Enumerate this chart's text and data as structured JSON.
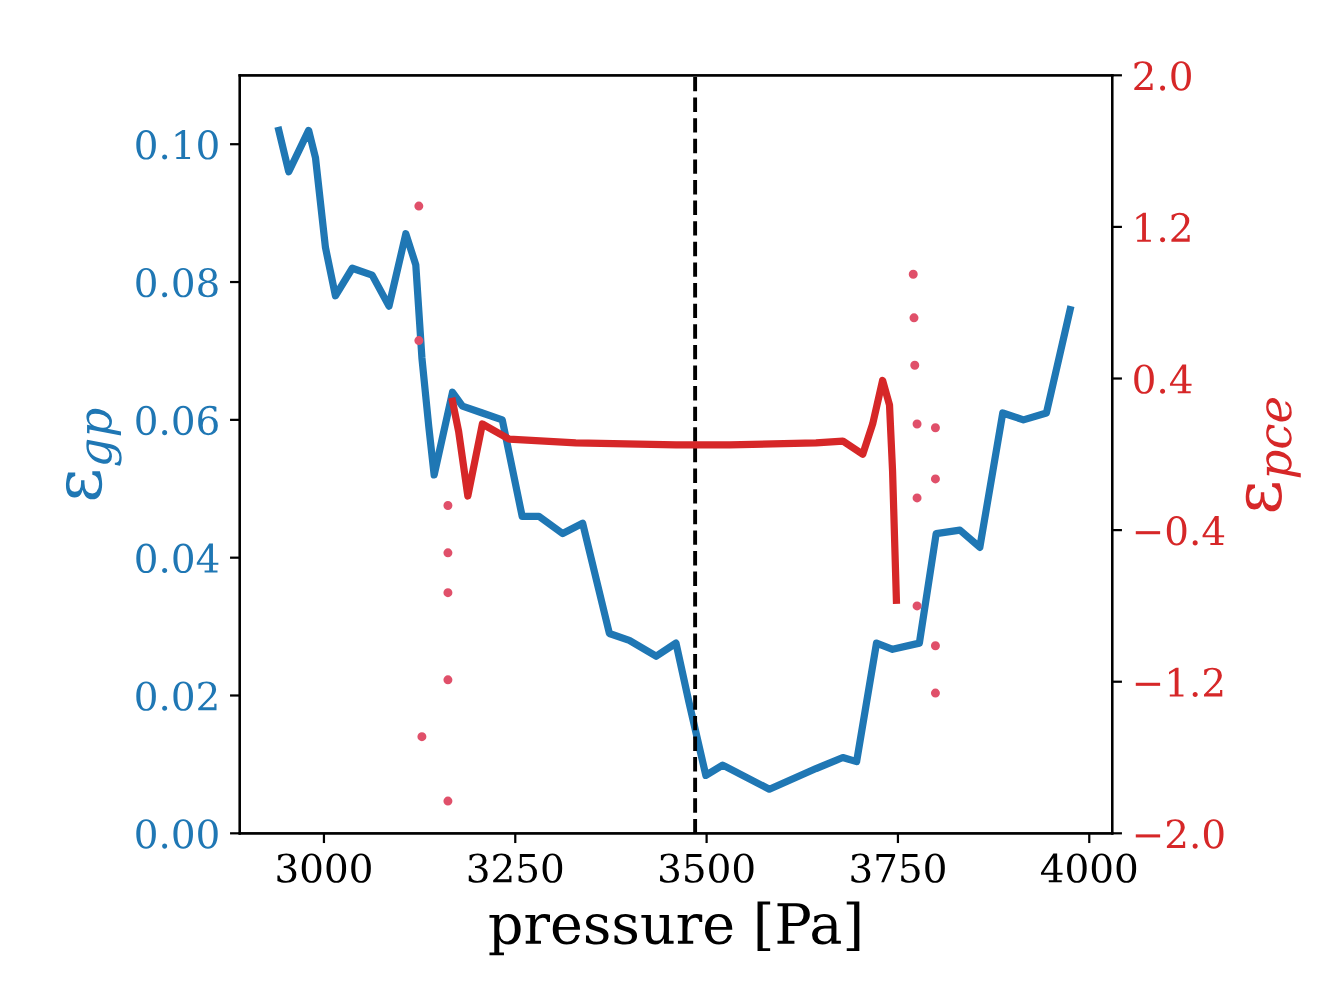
{
  "chart_data": {
    "type": "line",
    "xlabel": "pressure [Pa]",
    "ylabel": "ε$_{gp}$",
    "y2label": "ε$_{pce}$",
    "xlim": [
      2890,
      4030
    ],
    "xticks": [
      3000,
      3250,
      3500,
      3750,
      4000
    ],
    "ylim": [
      0,
      0.11
    ],
    "yticks": [
      {
        "value": 0,
        "label": "0.00"
      },
      {
        "value": 0.02,
        "label": "0.02"
      },
      {
        "value": 0.04,
        "label": "0.04"
      },
      {
        "value": 0.06,
        "label": "0.06"
      },
      {
        "value": 0.08,
        "label": "0.08"
      },
      {
        "value": 0.1,
        "label": "0.10"
      }
    ],
    "y2lim": [
      -2,
      2
    ],
    "y2ticks": [
      {
        "value": -2,
        "label": "−2.0"
      },
      {
        "value": -1.2,
        "label": "−1.2"
      },
      {
        "value": -0.4,
        "label": "−0.4"
      },
      {
        "value": 0.4,
        "label": "0.4"
      },
      {
        "value": 1.2,
        "label": "1.2"
      },
      {
        "value": 2,
        "label": "2.0"
      }
    ],
    "grid": false,
    "legend": false,
    "ref_lines": [
      {
        "axis": "x",
        "value": 3485,
        "color": "#000000",
        "line_style": "dashed"
      }
    ],
    "series": [
      {
        "color": "#1f77b4",
        "x": [
          2941,
          2954,
          2967,
          2980,
          2989,
          3002,
          3015,
          3037,
          3063,
          3085,
          3107,
          3120,
          3128,
          3137,
          3144,
          3154,
          3168,
          3181,
          3207,
          3233,
          3259,
          3281,
          3312,
          3338,
          3373,
          3399,
          3434,
          3460,
          3477,
          3499,
          3521,
          3582,
          3643,
          3678,
          3696,
          3722,
          3743,
          3778,
          3800,
          3831,
          3857,
          3887,
          3914,
          3944,
          3975
        ],
        "values": [
          0.102,
          0.096,
          0.099,
          0.102,
          0.098,
          0.085,
          0.078,
          0.082,
          0.081,
          0.0765,
          0.087,
          0.0825,
          0.069,
          0.059,
          0.052,
          0.057,
          0.064,
          0.062,
          0.061,
          0.06,
          0.046,
          0.046,
          0.0435,
          0.045,
          0.029,
          0.028,
          0.0257,
          0.0276,
          0.019,
          0.0084,
          0.0099,
          0.0064,
          0.0094,
          0.011,
          0.0104,
          0.0276,
          0.0267,
          0.0276,
          0.0435,
          0.044,
          0.0415,
          0.061,
          0.06,
          0.061,
          0.076
        ]
      },
      {
        "axis": "y2",
        "color": "#d62728",
        "x": [
          3168,
          3176,
          3188,
          3198,
          3207,
          3242,
          3329,
          3460,
          3530,
          3643,
          3678,
          3704,
          3717,
          3730,
          3739,
          3743,
          3748
        ],
        "values": [
          0.28,
          0.12,
          -0.22,
          -0.02,
          0.16,
          0.08,
          0.06,
          0.05,
          0.05,
          0.06,
          0.07,
          0.0,
          0.16,
          0.39,
          0.26,
          -0.09,
          -0.77
        ]
      },
      {
        "type": "scatter",
        "axis": "y2",
        "color": "#e0506a",
        "marker": "circle",
        "x": [
          3124,
          3124,
          3128,
          3162,
          3162,
          3162,
          3162,
          3162,
          3770,
          3771,
          3772,
          3775,
          3775,
          3775,
          3799,
          3799,
          3799,
          3799
        ],
        "values": [
          1.31,
          0.6,
          -1.49,
          -0.27,
          -0.52,
          -0.73,
          -1.19,
          -1.83,
          0.95,
          0.72,
          0.47,
          0.16,
          -0.23,
          -0.8,
          0.14,
          -0.13,
          -1.01,
          -1.26
        ]
      }
    ]
  }
}
